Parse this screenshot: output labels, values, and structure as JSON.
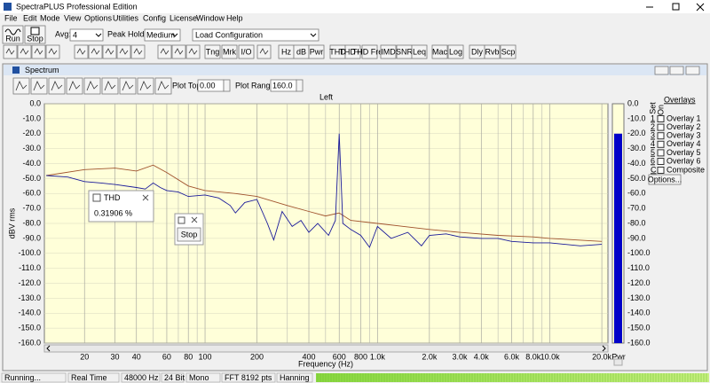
{
  "window": {
    "title": "SpectraPLUS Professional Edition"
  },
  "menu": [
    "File",
    "Edit",
    "Mode",
    "View",
    "Options",
    "Utilities",
    "Config",
    "License",
    "Window",
    "Help"
  ],
  "toolbar": {
    "run": "Run",
    "stop": "Stop",
    "avg_label": "Avg:",
    "avg": "4",
    "peak_hold_label": "Peak Hold:",
    "peak_hold": "Medium",
    "configuration": "Load Configuration",
    "buttons": [
      "Tng",
      "Mrk",
      "I/O",
      "Hz",
      "dB",
      "Pwr",
      "THD",
      "THD+N",
      "THD Freq",
      "IMD",
      "SNR",
      "Leq",
      "Mac",
      "Log",
      "Dly",
      "Rvb",
      "Scp"
    ]
  },
  "spectrum": {
    "title": "Spectrum",
    "plot_top_label": "Plot Top:",
    "plot_top": "0.00",
    "plot_range_label": "Plot Range:",
    "plot_range": "160.0",
    "chart": {
      "type": "line",
      "title": "Left",
      "xlabel": "Frequency (Hz)",
      "ylabel": "dBV rms",
      "xscale": "log",
      "xlim": [
        11.7,
        21700
      ],
      "xticks": [
        20,
        30,
        40,
        60,
        80,
        100,
        200,
        400,
        600,
        800,
        {
          "value": 1000,
          "label": "1.0k"
        },
        {
          "value": 2000,
          "label": "2.0k"
        },
        {
          "value": 3000,
          "label": "3.0k"
        },
        {
          "value": 4000,
          "label": "4.0k"
        },
        {
          "value": 6000,
          "label": "6.0k"
        },
        {
          "value": 8000,
          "label": "8.0k"
        },
        {
          "value": 10000,
          "label": "10.0k"
        },
        {
          "value": 20000,
          "label": "20.0k"
        }
      ],
      "minor_xticks": [
        50,
        70,
        90,
        300,
        500,
        700,
        900,
        5000,
        7000,
        9000
      ],
      "ylim": [
        -160,
        0
      ],
      "yticks": [
        {
          "value": 0,
          "label": "0.0"
        },
        {
          "value": -10,
          "label": "-10.0"
        },
        {
          "value": -20,
          "label": "-20.0"
        },
        {
          "value": -30,
          "label": "-30.0"
        },
        {
          "value": -40,
          "label": "-40.0"
        },
        {
          "value": -50,
          "label": "-50.0"
        },
        {
          "value": -60,
          "label": "-60.0"
        },
        {
          "value": -70,
          "label": "-70.0"
        },
        {
          "value": -80,
          "label": "-80.0"
        },
        {
          "value": -90,
          "label": "-90.0"
        },
        {
          "value": -100,
          "label": "-100.0"
        },
        {
          "value": -110,
          "label": "-110.0"
        },
        {
          "value": -120,
          "label": "-120.0"
        },
        {
          "value": -130,
          "label": "-130.0"
        },
        {
          "value": -140,
          "label": "-140.0"
        },
        {
          "value": -150,
          "label": "-150.0"
        },
        {
          "value": -160,
          "label": "-160.0"
        }
      ],
      "grid": true,
      "series": [
        {
          "color": "#a0522d",
          "x": [
            12,
            20,
            30,
            40,
            50,
            60,
            80,
            100,
            150,
            200,
            300,
            400,
            500,
            600,
            700,
            1000,
            2000,
            3000,
            5000,
            8000,
            10000,
            20000
          ],
          "values": [
            -48,
            -44,
            -43,
            -45,
            -41,
            -46,
            -55,
            -58,
            -60,
            -62,
            -68,
            -72,
            -75,
            -73,
            -78,
            -80,
            -84,
            -86,
            -88,
            -89,
            -90,
            -92
          ]
        },
        {
          "color": "#1a1a9a",
          "x": [
            12,
            16,
            20,
            25,
            30,
            40,
            45,
            50,
            55,
            60,
            70,
            80,
            100,
            120,
            140,
            150,
            170,
            200,
            230,
            250,
            280,
            320,
            360,
            400,
            450,
            520,
            570,
            600,
            630,
            700,
            800,
            900,
            1000,
            1200,
            1500,
            1800,
            2000,
            2500,
            3000,
            4000,
            5000,
            6000,
            8000,
            10000,
            15000,
            20000
          ],
          "values": [
            -48,
            -49,
            -52,
            -53,
            -54,
            -56,
            -57,
            -53,
            -56,
            -58,
            -59,
            -62,
            -61,
            -63,
            -68,
            -73,
            -66,
            -64,
            -80,
            -91,
            -72,
            -82,
            -78,
            -86,
            -80,
            -88,
            -78,
            -20,
            -80,
            -84,
            -88,
            -96,
            -82,
            -90,
            -86,
            -95,
            -88,
            -87,
            -89,
            -90,
            -90,
            -92,
            -93,
            -93,
            -95,
            -94
          ]
        }
      ],
      "meter": {
        "label": "Pwr",
        "value": -20,
        "color": "#0000c8"
      }
    },
    "overlays": {
      "title": "Overlays",
      "set_label": "Set",
      "on_label": "On",
      "items": [
        {
          "set": "1",
          "name": "Overlay 1",
          "color": "#3aa64a"
        },
        {
          "set": "2",
          "name": "Overlay 2",
          "color": "#2aa6a6"
        },
        {
          "set": "3",
          "name": "Overlay 3",
          "color": "#9040c0"
        },
        {
          "set": "4",
          "name": "Overlay 4",
          "color": "#e020e0"
        },
        {
          "set": "5",
          "name": "Overlay 5",
          "color": "#e07070"
        },
        {
          "set": "6",
          "name": "Overlay 6",
          "color": "#c08040"
        }
      ],
      "composite": {
        "set": "C",
        "name": "Composite"
      },
      "options": "Options..."
    }
  },
  "thd_popup": {
    "title": "THD",
    "value": "0.31906 %"
  },
  "stop_popup": {
    "button": "Stop"
  },
  "status": [
    "Running...",
    "Real Time",
    "48000 Hz",
    "24 Bit",
    "Mono",
    "FFT 8192 pts",
    "Hanning"
  ]
}
